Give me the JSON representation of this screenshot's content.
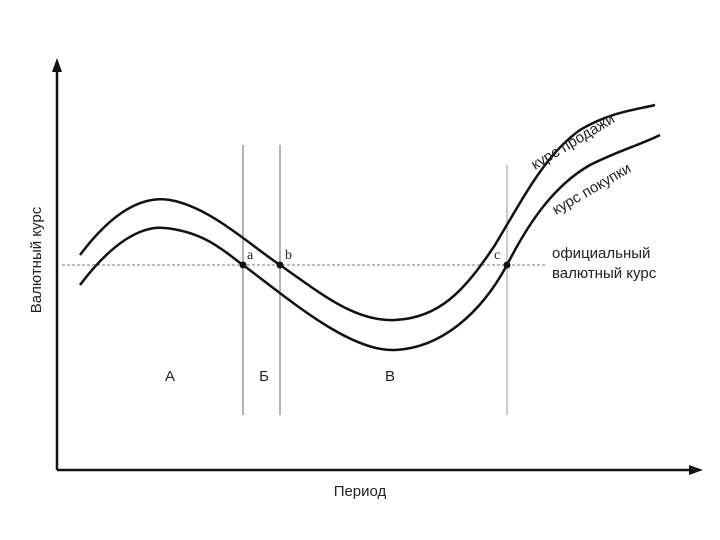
{
  "axes": {
    "y_label": "Валютный курс",
    "x_label": "Период"
  },
  "curves": {
    "sell": "курс продажи",
    "buy": "курс покупки"
  },
  "official_rate": [
    "официальный",
    "валютный курс"
  ],
  "points": {
    "a": "a",
    "b": "b",
    "c": "c"
  },
  "zones": [
    "А",
    "Б",
    "В"
  ]
}
